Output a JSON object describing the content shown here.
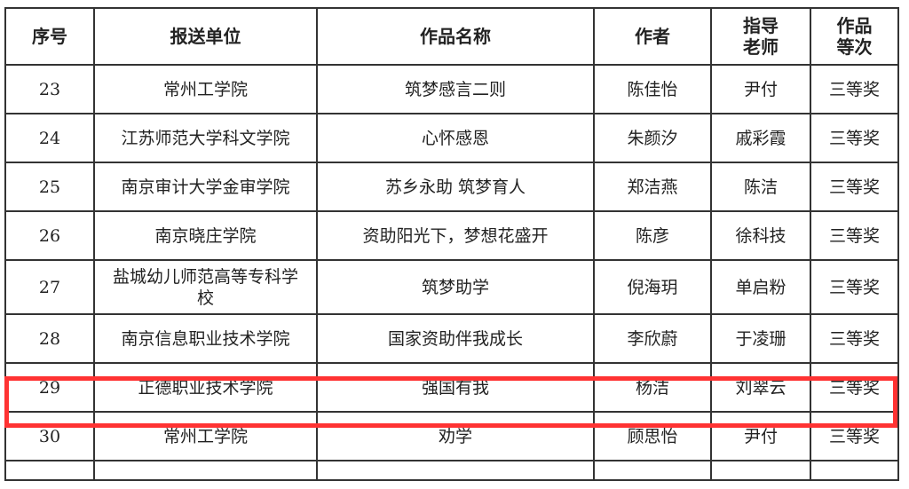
{
  "table": {
    "headers": [
      "序号",
      "报送单位",
      "作品名称",
      "作者",
      "指导老师",
      "作品等次"
    ],
    "rows": [
      {
        "no": "23",
        "unit": "常州工学院",
        "title": "筑梦感言二则",
        "author": "陈佳怡",
        "advisor": "尹付",
        "level": "三等奖"
      },
      {
        "no": "24",
        "unit": "江苏师范大学科文学院",
        "title": "心怀感恩",
        "author": "朱颜汐",
        "advisor": "戚彩霞",
        "level": "三等奖"
      },
      {
        "no": "25",
        "unit": "南京审计大学金审学院",
        "title": "苏乡永助 筑梦育人",
        "author": "郑洁燕",
        "advisor": "陈洁",
        "level": "三等奖"
      },
      {
        "no": "26",
        "unit": "南京晓庄学院",
        "title": "资助阳光下，梦想花盛开",
        "author": "陈彦",
        "advisor": "徐科技",
        "level": "三等奖"
      },
      {
        "no": "27",
        "unit": "盐城幼儿师范高等专科学校",
        "title": "筑梦助学",
        "author": "倪海玥",
        "advisor": "单启粉",
        "level": "三等奖"
      },
      {
        "no": "28",
        "unit": "南京信息职业技术学院",
        "title": "国家资助伴我成长",
        "author": "李欣蔚",
        "advisor": "于凌珊",
        "level": "三等奖"
      },
      {
        "no": "29",
        "unit": "正德职业技术学院",
        "title": "强国有我",
        "author": "杨洁",
        "advisor": "刘翠云",
        "level": "三等奖"
      },
      {
        "no": "30",
        "unit": "常州工学院",
        "title": "劝学",
        "author": "顾思怡",
        "advisor": "尹付",
        "level": "三等奖"
      }
    ]
  },
  "highlight": {
    "row_no": "29",
    "color": "#ff3333"
  }
}
